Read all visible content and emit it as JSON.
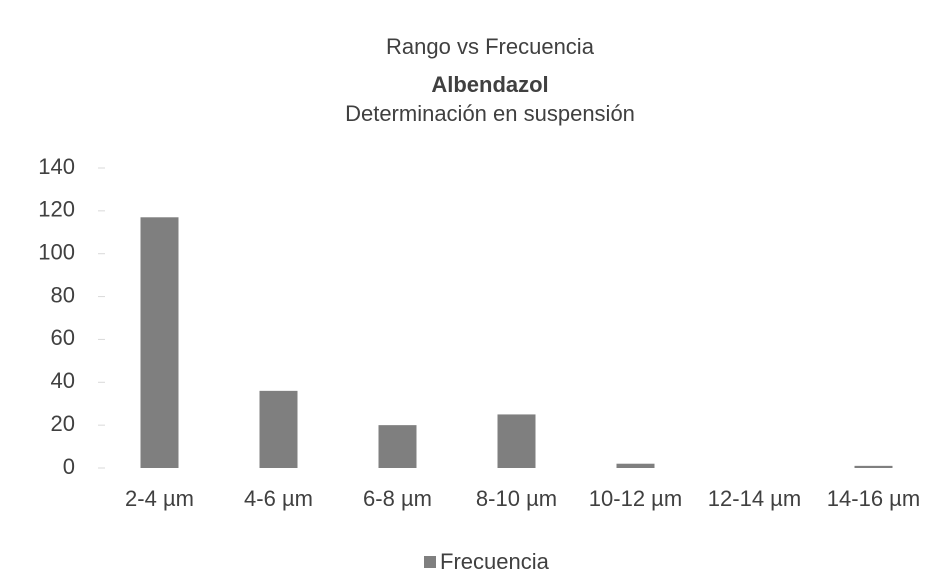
{
  "chart_data": {
    "type": "bar",
    "title": "Rango vs Frecuencia",
    "subtitle": "Albendazol",
    "subtitle2": "Determinación en suspensión",
    "categories": [
      "2-4 µm",
      "4-6 µm",
      "6-8 µm",
      "8-10 µm",
      "10-12 µm",
      "12-14 µm",
      "14-16 µm"
    ],
    "series": [
      {
        "name": "Frecuencia",
        "color": "#7f7f7f",
        "values": [
          117,
          36,
          20,
          25,
          2,
          0,
          1
        ]
      }
    ],
    "ylim": [
      0,
      140
    ],
    "yticks": [
      0,
      20,
      40,
      60,
      80,
      100,
      120,
      140
    ],
    "grid": false,
    "legend": "bottom"
  }
}
